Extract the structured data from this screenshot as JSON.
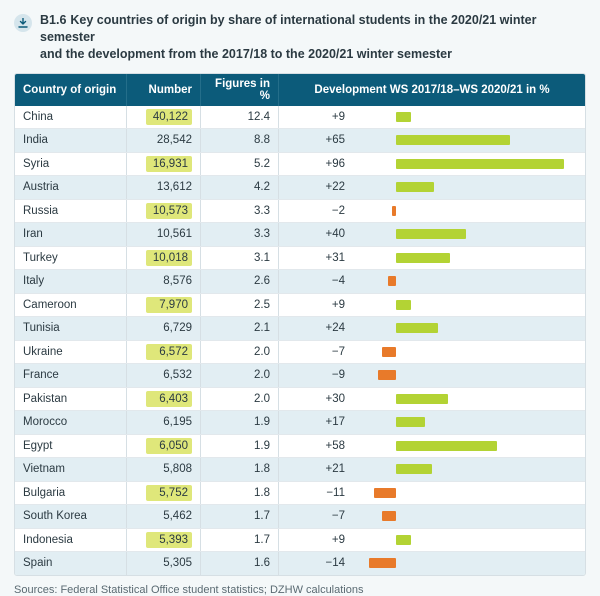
{
  "heading": {
    "code": "B1.6",
    "text_line1": "Key countries of origin by share of international students in the 2020/21 winter semester",
    "text_line2": "and the development from the 2017/18 to the 2020/21 winter semester"
  },
  "table": {
    "headers": {
      "country": "Country of origin",
      "number": "Number",
      "pct": "Figures in %",
      "dev": "Development WS 2017/18–WS 2020/21 in %"
    },
    "colors": {
      "pos_bar": "#b3d334",
      "neg_bar": "#e87a2a",
      "highlight": "#dfe77a",
      "header_bg": "#0c5b7a",
      "stripe_bg": "#e2eef3"
    },
    "dev_axis": {
      "min": -20,
      "max": 100,
      "neg_frac": 0.18,
      "pos_frac": 0.82
    },
    "rows": [
      {
        "country": "China",
        "number": "40,122",
        "pct": "12.4",
        "dev": 9,
        "dev_label": "+9",
        "highlight": true
      },
      {
        "country": "India",
        "number": "28,542",
        "pct": "8.8",
        "dev": 65,
        "dev_label": "+65",
        "highlight": false
      },
      {
        "country": "Syria",
        "number": "16,931",
        "pct": "5.2",
        "dev": 96,
        "dev_label": "+96",
        "highlight": true
      },
      {
        "country": "Austria",
        "number": "13,612",
        "pct": "4.2",
        "dev": 22,
        "dev_label": "+22",
        "highlight": false
      },
      {
        "country": "Russia",
        "number": "10,573",
        "pct": "3.3",
        "dev": -2,
        "dev_label": "−2",
        "highlight": true
      },
      {
        "country": "Iran",
        "number": "10,561",
        "pct": "3.3",
        "dev": 40,
        "dev_label": "+40",
        "highlight": false
      },
      {
        "country": "Turkey",
        "number": "10,018",
        "pct": "3.1",
        "dev": 31,
        "dev_label": "+31",
        "highlight": true
      },
      {
        "country": "Italy",
        "number": "8,576",
        "pct": "2.6",
        "dev": -4,
        "dev_label": "−4",
        "highlight": false
      },
      {
        "country": "Cameroon",
        "number": "7,970",
        "pct": "2.5",
        "dev": 9,
        "dev_label": "+9",
        "highlight": true
      },
      {
        "country": "Tunisia",
        "number": "6,729",
        "pct": "2.1",
        "dev": 24,
        "dev_label": "+24",
        "highlight": false
      },
      {
        "country": "Ukraine",
        "number": "6,572",
        "pct": "2.0",
        "dev": -7,
        "dev_label": "−7",
        "highlight": true
      },
      {
        "country": "France",
        "number": "6,532",
        "pct": "2.0",
        "dev": -9,
        "dev_label": "−9",
        "highlight": false
      },
      {
        "country": "Pakistan",
        "number": "6,403",
        "pct": "2.0",
        "dev": 30,
        "dev_label": "+30",
        "highlight": true
      },
      {
        "country": "Morocco",
        "number": "6,195",
        "pct": "1.9",
        "dev": 17,
        "dev_label": "+17",
        "highlight": false
      },
      {
        "country": "Egypt",
        "number": "6,050",
        "pct": "1.9",
        "dev": 58,
        "dev_label": "+58",
        "highlight": true
      },
      {
        "country": "Vietnam",
        "number": "5,808",
        "pct": "1.8",
        "dev": 21,
        "dev_label": "+21",
        "highlight": false
      },
      {
        "country": "Bulgaria",
        "number": "5,752",
        "pct": "1.8",
        "dev": -11,
        "dev_label": "−11",
        "highlight": true
      },
      {
        "country": "South Korea",
        "number": "5,462",
        "pct": "1.7",
        "dev": -7,
        "dev_label": "−7",
        "highlight": false
      },
      {
        "country": "Indonesia",
        "number": "5,393",
        "pct": "1.7",
        "dev": 9,
        "dev_label": "+9",
        "highlight": true
      },
      {
        "country": "Spain",
        "number": "5,305",
        "pct": "1.6",
        "dev": -14,
        "dev_label": "−14",
        "highlight": false
      }
    ]
  },
  "sources": "Sources: Federal Statistical Office student statistics; DZHW calculations"
}
